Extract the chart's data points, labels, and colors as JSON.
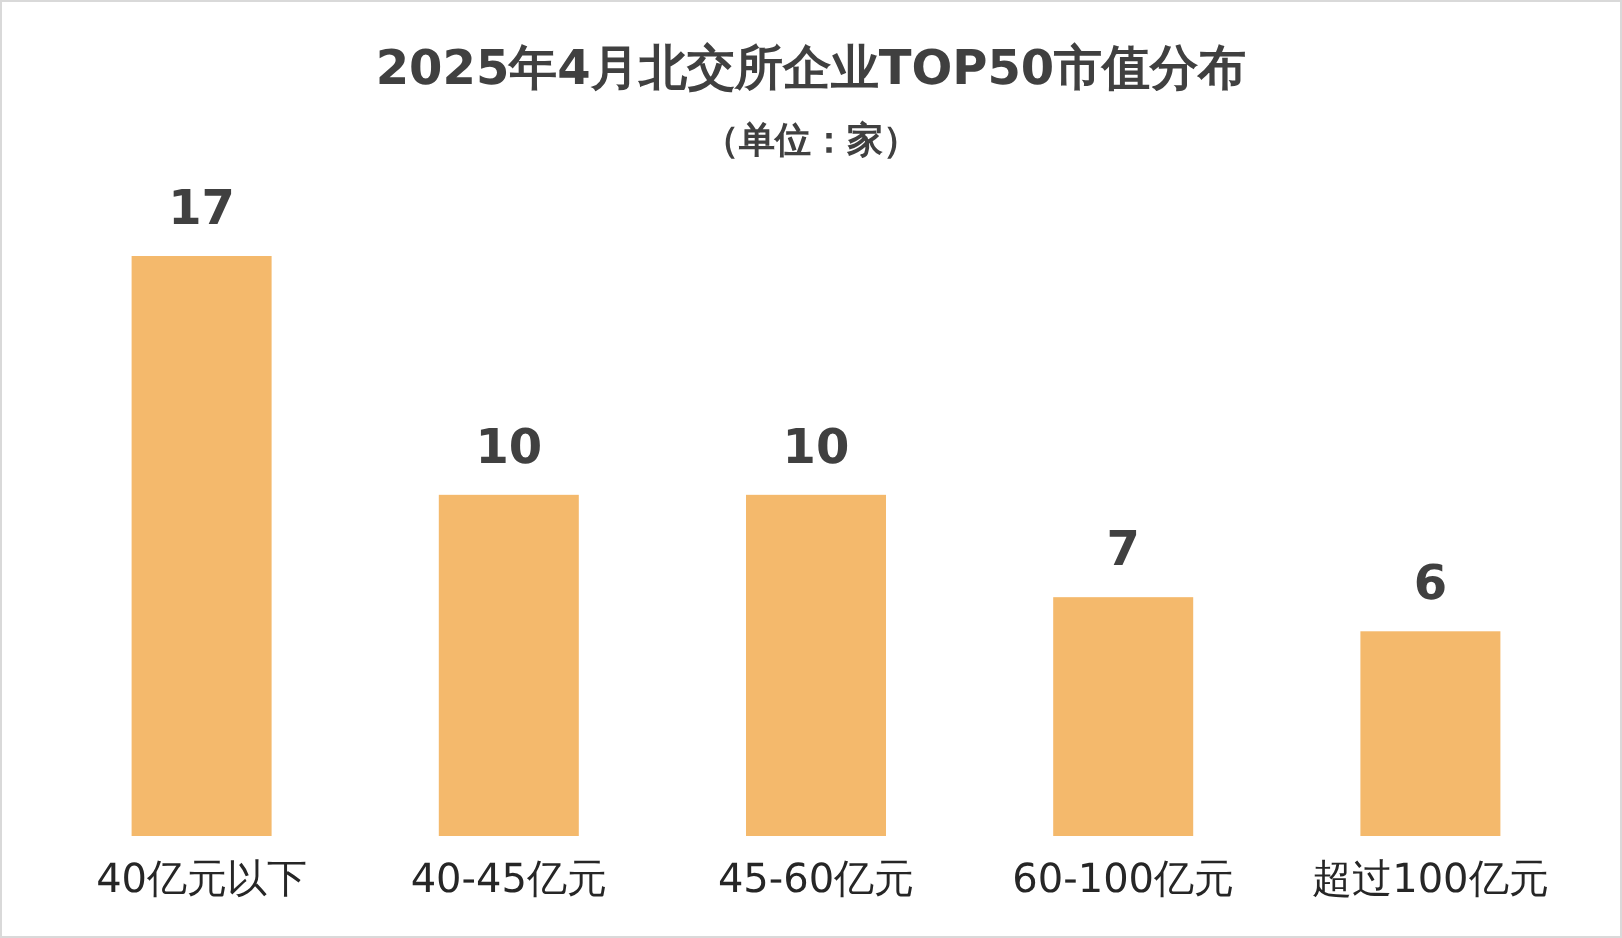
{
  "chart_data": {
    "type": "bar",
    "title": "2025年4月北交所企业TOP50市值分布",
    "subtitle": "（单位：家）",
    "categories": [
      "40亿元以下",
      "40-45亿元",
      "45-60亿元",
      "60-100亿元",
      "超过100亿元"
    ],
    "values": [
      17,
      10,
      10,
      7,
      6
    ],
    "color": "#f4b96c",
    "data_labels": true
  }
}
